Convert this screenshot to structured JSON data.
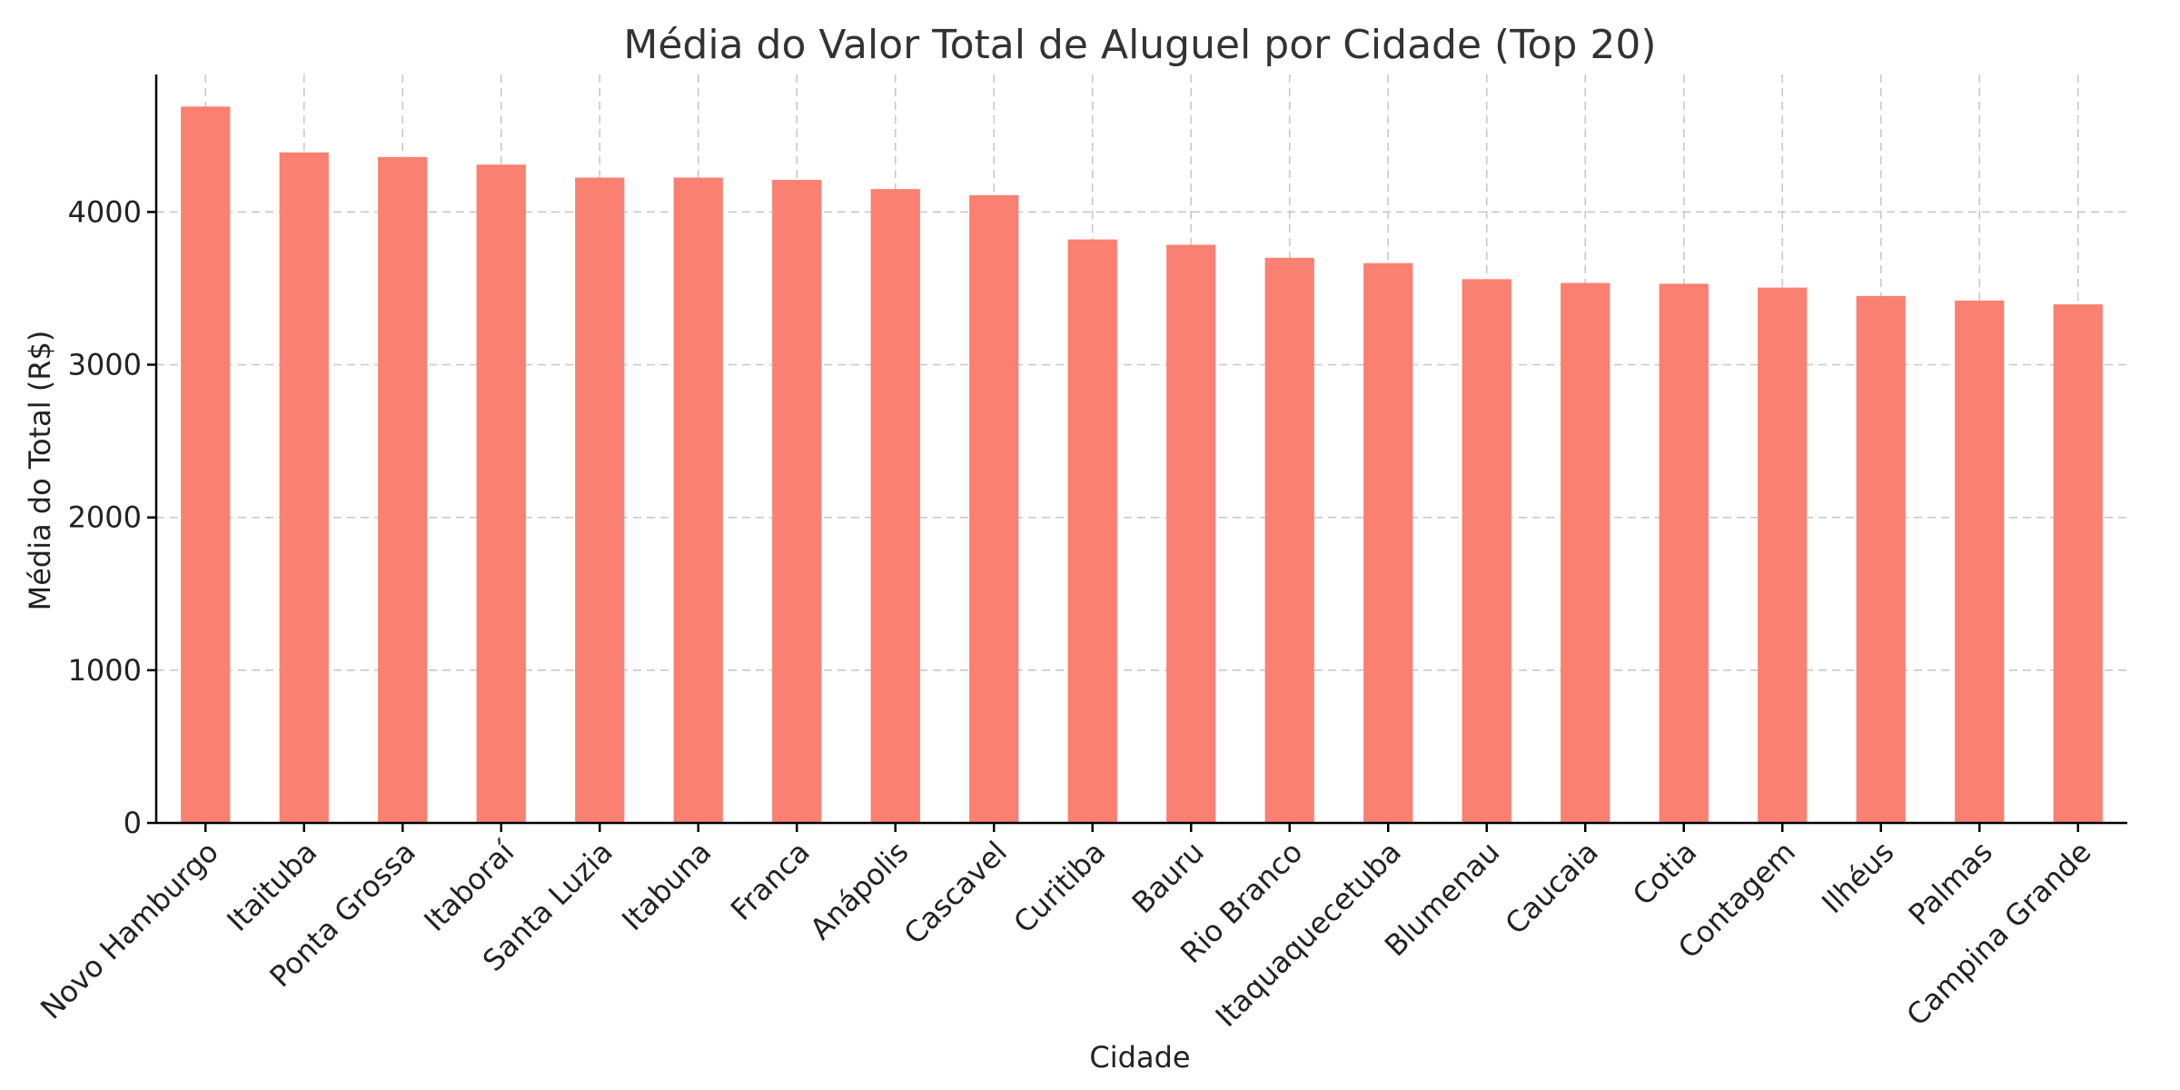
{
  "chart_data": {
    "type": "bar",
    "title": "Média do Valor Total de Aluguel por Cidade (Top 20)",
    "xlabel": "Cidade",
    "ylabel": "Média do Total (R$)",
    "categories": [
      "Novo Hamburgo",
      "Itaituba",
      "Ponta Grossa",
      "Itaboraí",
      "Santa Luzia",
      "Itabuna",
      "Franca",
      "Anápolis",
      "Cascavel",
      "Curitiba",
      "Bauru",
      "Rio Branco",
      "Itaquaquecetuba",
      "Blumenau",
      "Caucaia",
      "Cotia",
      "Contagem",
      "Ilhéus",
      "Palmas",
      "Campina Grande"
    ],
    "values": [
      4690,
      4390,
      4360,
      4310,
      4225,
      4225,
      4210,
      4150,
      4110,
      3820,
      3785,
      3700,
      3665,
      3560,
      3535,
      3530,
      3505,
      3450,
      3420,
      3395
    ],
    "ylim": [
      0,
      4900
    ],
    "yticks": [
      0,
      1000,
      2000,
      3000,
      4000
    ],
    "grid": true,
    "legend": "none",
    "colors": {
      "bar": "#fa8072",
      "grid": "#c8c8c8",
      "axis": "#000000"
    }
  }
}
